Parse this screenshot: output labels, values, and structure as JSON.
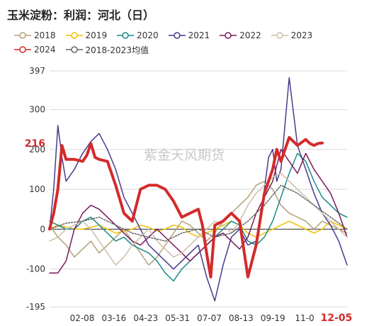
{
  "chart_data": {
    "type": "line",
    "title": "玉米淀粉：利润：河北（日）",
    "watermark": "紫金天风期货",
    "ylim": [
      -195,
      397
    ],
    "yticks": [
      -195,
      -100,
      0,
      100,
      200,
      300,
      397
    ],
    "xticks": [
      "02-08",
      "03-16",
      "04-23",
      "05-31",
      "07-07",
      "08-13",
      "09-19",
      "11-0",
      "12-05"
    ],
    "latest_label": "216",
    "latest_date": "12-05",
    "series": [
      {
        "name": "2018",
        "color": "#b5a07a",
        "width": 1.5,
        "x": [
          0,
          10,
          20,
          30,
          40,
          50,
          60,
          70,
          80,
          90,
          100,
          110,
          120,
          130,
          140,
          150,
          160,
          170,
          180,
          190,
          200,
          210,
          220,
          230,
          240,
          250,
          260,
          270,
          280,
          290,
          300,
          310,
          320,
          330,
          340,
          350,
          360
        ],
        "values": [
          10,
          -20,
          -40,
          -70,
          -50,
          -30,
          -60,
          -40,
          -20,
          0,
          -30,
          -60,
          -90,
          -70,
          -40,
          -10,
          20,
          10,
          -10,
          -30,
          -10,
          20,
          40,
          60,
          80,
          110,
          120,
          100,
          60,
          40,
          30,
          20,
          0,
          20,
          10,
          0,
          -10
        ]
      },
      {
        "name": "2019",
        "color": "#f2c200",
        "width": 1.5,
        "x": [
          0,
          10,
          20,
          30,
          40,
          50,
          60,
          70,
          80,
          90,
          100,
          110,
          120,
          130,
          140,
          150,
          160,
          170,
          180,
          190,
          200,
          210,
          220,
          230,
          240,
          250,
          260,
          270,
          280,
          290,
          300,
          310,
          320,
          330,
          340,
          350,
          360
        ],
        "values": [
          0,
          10,
          5,
          0,
          0,
          5,
          10,
          0,
          -10,
          -5,
          0,
          10,
          5,
          -5,
          0,
          10,
          5,
          -10,
          -20,
          -10,
          0,
          10,
          20,
          10,
          -10,
          -20,
          -10,
          0,
          10,
          20,
          10,
          0,
          -10,
          0,
          20,
          10,
          0
        ]
      },
      {
        "name": "2020",
        "color": "#1a8a8a",
        "width": 1.5,
        "x": [
          0,
          10,
          20,
          30,
          40,
          50,
          60,
          70,
          80,
          90,
          100,
          110,
          120,
          130,
          140,
          150,
          160,
          170,
          180,
          190,
          200,
          210,
          220,
          230,
          240,
          250,
          260,
          270,
          280,
          290,
          300,
          310,
          320,
          330,
          340,
          350,
          360
        ],
        "values": [
          20,
          10,
          0,
          0,
          20,
          30,
          10,
          -10,
          -30,
          -20,
          -40,
          -50,
          -60,
          -80,
          -110,
          -130,
          -100,
          -80,
          -60,
          -40,
          -20,
          0,
          20,
          10,
          -30,
          -40,
          -20,
          20,
          80,
          140,
          190,
          170,
          120,
          80,
          60,
          40,
          30
        ]
      },
      {
        "name": "2021",
        "color": "#4a3a8c",
        "width": 1.5,
        "x": [
          0,
          5,
          10,
          15,
          20,
          30,
          40,
          50,
          60,
          70,
          80,
          90,
          100,
          110,
          120,
          130,
          140,
          150,
          160,
          170,
          180,
          190,
          200,
          210,
          220,
          230,
          240,
          250,
          260,
          265,
          270,
          275,
          280,
          290,
          300,
          310,
          320,
          330,
          340,
          350,
          360
        ],
        "values": [
          0,
          100,
          260,
          180,
          120,
          150,
          190,
          220,
          240,
          200,
          150,
          80,
          40,
          0,
          -40,
          -60,
          -80,
          -100,
          -80,
          -60,
          -40,
          -120,
          -180,
          -90,
          -20,
          0,
          -40,
          -30,
          100,
          180,
          200,
          120,
          150,
          380,
          210,
          150,
          90,
          40,
          10,
          -30,
          -90
        ]
      },
      {
        "name": "2022",
        "color": "#7a1a5a",
        "width": 1.5,
        "x": [
          0,
          10,
          20,
          30,
          40,
          50,
          60,
          70,
          80,
          90,
          100,
          110,
          120,
          130,
          140,
          150,
          160,
          170,
          180,
          190,
          200,
          210,
          220,
          230,
          240,
          250,
          260,
          270,
          280,
          290,
          300,
          310,
          320,
          330,
          340,
          350,
          360
        ],
        "values": [
          -110,
          -110,
          -80,
          0,
          40,
          60,
          50,
          30,
          10,
          -10,
          -30,
          -40,
          -20,
          0,
          -20,
          -40,
          -60,
          -80,
          -60,
          -40,
          -20,
          -10,
          -30,
          -50,
          -20,
          40,
          80,
          120,
          200,
          170,
          140,
          190,
          150,
          120,
          90,
          40,
          -20
        ]
      },
      {
        "name": "2023",
        "color": "#cdbfaa",
        "width": 1.5,
        "x": [
          0,
          10,
          20,
          30,
          40,
          50,
          60,
          70,
          80,
          90,
          100,
          110,
          120,
          130,
          140,
          150,
          160,
          170,
          180,
          190,
          200,
          210,
          220,
          230,
          240,
          250,
          260,
          270,
          280,
          290,
          300,
          310,
          320,
          330,
          340,
          350,
          360
        ],
        "values": [
          -30,
          -20,
          0,
          10,
          20,
          0,
          -30,
          -60,
          -90,
          -70,
          -40,
          -20,
          0,
          -30,
          -50,
          -70,
          -60,
          -40,
          -20,
          0,
          20,
          10,
          -10,
          20,
          60,
          90,
          110,
          130,
          140,
          120,
          100,
          80,
          60,
          40,
          20,
          0,
          -20
        ]
      },
      {
        "name": "2024",
        "color": "#d42a2a",
        "width": 4,
        "x": [
          0,
          5,
          10,
          15,
          20,
          25,
          30,
          40,
          45,
          50,
          55,
          60,
          70,
          80,
          90,
          100,
          110,
          120,
          130,
          140,
          150,
          160,
          170,
          180,
          185,
          190,
          195,
          200,
          210,
          220,
          230,
          240,
          250,
          260,
          270,
          275,
          280,
          290,
          300,
          310,
          315,
          320,
          325,
          330
        ],
        "values": [
          0,
          40,
          100,
          210,
          175,
          175,
          175,
          170,
          185,
          215,
          180,
          175,
          170,
          110,
          40,
          20,
          100,
          110,
          110,
          100,
          70,
          30,
          40,
          50,
          10,
          -60,
          -120,
          10,
          20,
          40,
          20,
          -120,
          -40,
          90,
          150,
          200,
          170,
          230,
          210,
          225,
          215,
          210,
          215,
          216
        ]
      },
      {
        "name": "2018-2023均值",
        "color": "#666666",
        "width": 1.5,
        "dash": "2,2",
        "x": [
          0,
          20,
          40,
          60,
          80,
          100,
          120,
          140,
          160,
          180,
          200,
          220,
          240,
          260,
          280,
          300,
          320,
          340,
          360
        ],
        "values": [
          0,
          15,
          20,
          30,
          10,
          -10,
          -20,
          -30,
          -10,
          0,
          -20,
          -10,
          20,
          60,
          110,
          90,
          60,
          30,
          0
        ]
      }
    ],
    "legend_position": "top",
    "grid": true
  }
}
